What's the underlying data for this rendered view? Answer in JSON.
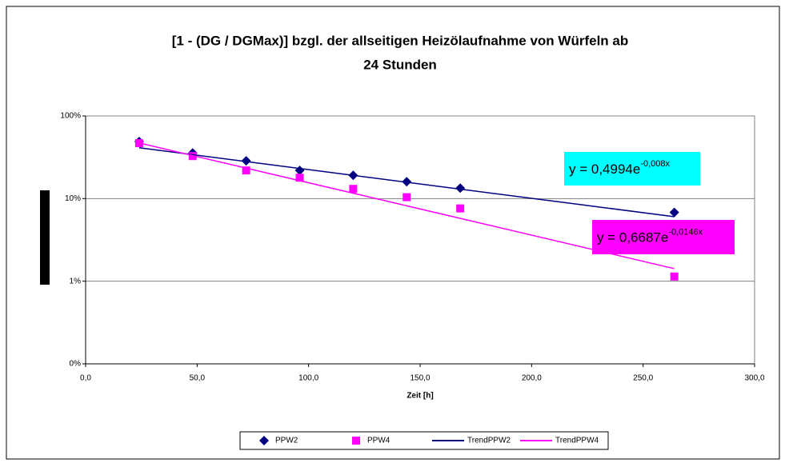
{
  "chart_data": {
    "type": "scatter",
    "title": [
      "[1 - (DG / DGMax)] bzgl. der allseitigen Heizölaufnahme von Würfeln ab",
      "24 Stunden"
    ],
    "x_label": "Zeit [h]",
    "xlim": [
      0,
      300
    ],
    "xticks": [
      {
        "value": 0,
        "label": "0,0"
      },
      {
        "value": 50,
        "label": "50,0"
      },
      {
        "value": 100,
        "label": "100,0"
      },
      {
        "value": 150,
        "label": "150,0"
      },
      {
        "value": 200,
        "label": "200,0"
      },
      {
        "value": 250,
        "label": "250,0"
      },
      {
        "value": 300,
        "label": "300,0"
      }
    ],
    "ylim": [
      0.1,
      100
    ],
    "y_log": true,
    "yticks": [
      {
        "value": 0.1,
        "label": "0%"
      },
      {
        "value": 1,
        "label": "1%"
      },
      {
        "value": 10,
        "label": "10%"
      },
      {
        "value": 100,
        "label": "100%"
      }
    ],
    "grid": true,
    "legend": "bottom",
    "series": [
      {
        "name": "PPW2",
        "color": "#000080",
        "marker": "diamond",
        "x": [
          24,
          48,
          72,
          96,
          120,
          144,
          168,
          264
        ],
        "values": [
          49,
          35.7,
          28.6,
          21.9,
          19.1,
          16,
          13.4,
          6.8
        ]
      },
      {
        "name": "PPW4",
        "color": "#ff00ff",
        "marker": "square",
        "x": [
          24,
          48,
          72,
          96,
          120,
          144,
          168,
          264
        ],
        "values": [
          46.8,
          32.7,
          21.9,
          17.9,
          13.1,
          10.4,
          7.6,
          1.14
        ]
      },
      {
        "name": "TrendPPW2",
        "color": "#000080",
        "marker": "line",
        "x": [
          24,
          264
        ],
        "values": [
          41.2,
          6.04
        ]
      },
      {
        "name": "TrendPPW4",
        "color": "#ff00ff",
        "marker": "line",
        "x": [
          24,
          264
        ],
        "values": [
          47.1,
          1.42
        ]
      }
    ],
    "annotations": [
      {
        "text": "y = 0,4994e",
        "exponent": "-0,008x",
        "color": "#00ffff"
      },
      {
        "text": "y = 0,6687e",
        "exponent": "-0,0146x",
        "color": "#ff00ff"
      }
    ]
  }
}
